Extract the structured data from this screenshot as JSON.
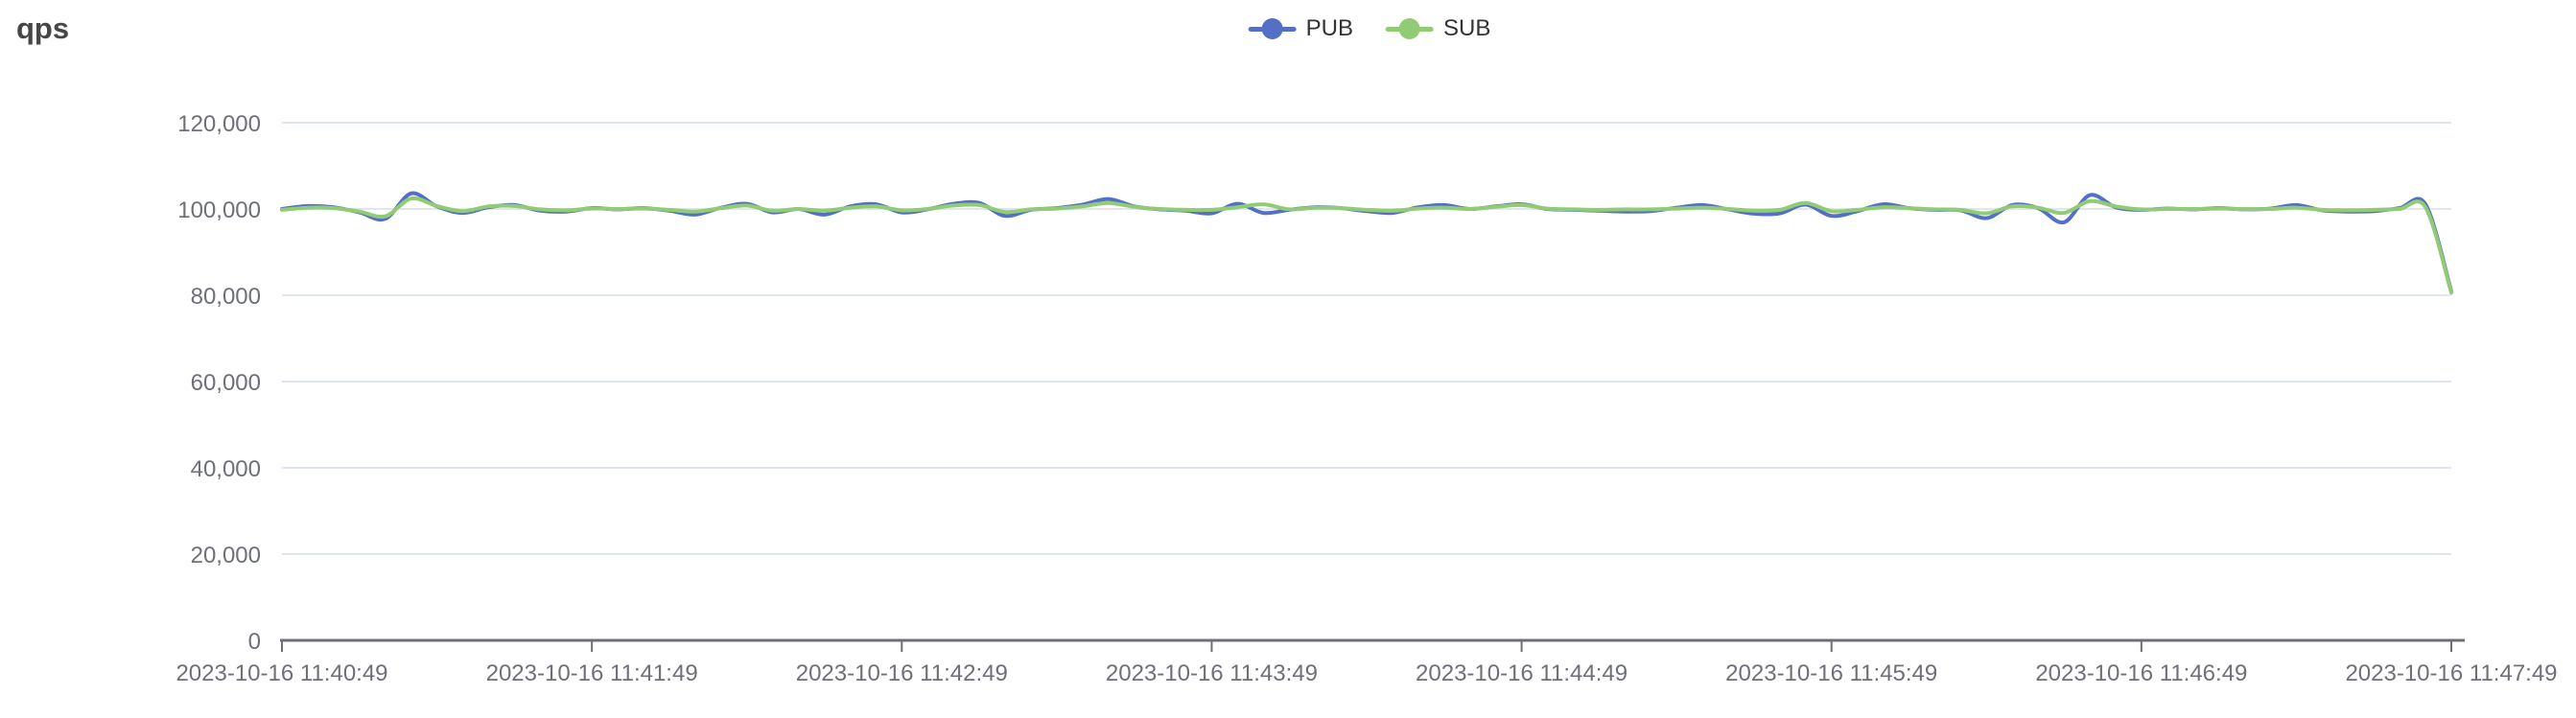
{
  "page": {
    "title": "qps"
  },
  "legend": {
    "items": [
      {
        "label": "PUB",
        "color": "#5470c6"
      },
      {
        "label": "SUB",
        "color": "#91cc75"
      }
    ]
  },
  "chart_data": {
    "type": "line",
    "smooth": true,
    "title": "qps",
    "grid": true,
    "legend_position": "top-center",
    "colors": {
      "grid_line": "#e0e6f1",
      "axis_line": "#6e7079",
      "axis_label": "#6e7079"
    },
    "y_axis": {
      "min": 0,
      "max": 120000,
      "interval": 20000,
      "tick_labels": [
        "0",
        "20,000",
        "40,000",
        "60,000",
        "80,000",
        "100,000",
        "120,000"
      ]
    },
    "x_axis": {
      "tick_seconds": [
        0,
        60,
        120,
        180,
        240,
        300,
        360,
        420
      ],
      "tick_labels": [
        "2023-10-16 11:40:49",
        "2023-10-16 11:41:49",
        "2023-10-16 11:42:49",
        "2023-10-16 11:43:49",
        "2023-10-16 11:44:49",
        "2023-10-16 11:45:49",
        "2023-10-16 11:46:49",
        "2023-10-16 11:47:49"
      ]
    },
    "x_seconds": [
      0,
      5,
      10,
      15,
      20,
      25,
      30,
      35,
      40,
      45,
      50,
      55,
      60,
      65,
      70,
      75,
      80,
      85,
      90,
      95,
      100,
      105,
      110,
      115,
      120,
      125,
      130,
      135,
      140,
      145,
      150,
      155,
      160,
      165,
      170,
      175,
      180,
      185,
      190,
      195,
      200,
      205,
      210,
      215,
      220,
      225,
      230,
      235,
      240,
      245,
      250,
      255,
      260,
      265,
      270,
      275,
      280,
      285,
      290,
      295,
      300,
      305,
      310,
      315,
      320,
      325,
      330,
      335,
      340,
      345,
      350,
      355,
      360,
      365,
      370,
      375,
      380,
      385,
      390,
      395,
      400,
      405,
      410,
      415,
      420
    ],
    "series": [
      {
        "name": "PUB",
        "color": "#5470c6",
        "values": [
          100000,
          100700,
          100400,
          99200,
          97700,
          103600,
          100600,
          99100,
          100400,
          100900,
          99600,
          99400,
          100200,
          99900,
          100200,
          99600,
          98700,
          100300,
          101200,
          99200,
          100000,
          98700,
          100600,
          101100,
          99200,
          99900,
          101200,
          101400,
          98400,
          99800,
          100200,
          101000,
          102300,
          100600,
          99900,
          99600,
          99000,
          101200,
          99100,
          99800,
          100400,
          100200,
          99500,
          99100,
          100400,
          100900,
          100000,
          100600,
          101100,
          100000,
          99800,
          99600,
          99400,
          99500,
          100300,
          100900,
          99900,
          98900,
          99000,
          101000,
          98400,
          99500,
          101100,
          100200,
          99800,
          99700,
          97900,
          100900,
          100200,
          96900,
          103200,
          100400,
          99800,
          100100,
          99900,
          100200,
          99900,
          100100,
          100900,
          99700,
          99400,
          99500,
          100200,
          101100,
          80900
        ]
      },
      {
        "name": "SUB",
        "color": "#91cc75",
        "values": [
          99800,
          100300,
          100200,
          99400,
          98300,
          102400,
          100700,
          99500,
          100600,
          100700,
          99900,
          99700,
          100100,
          100000,
          100100,
          99800,
          99400,
          100200,
          100800,
          99600,
          100000,
          99600,
          100300,
          100600,
          99700,
          100000,
          100800,
          100900,
          99300,
          99900,
          100100,
          100600,
          101400,
          100500,
          100000,
          99800,
          99800,
          100400,
          101100,
          99900,
          100300,
          100200,
          99800,
          99600,
          100100,
          100300,
          100000,
          100500,
          100900,
          100100,
          99900,
          99800,
          99900,
          99900,
          100100,
          100300,
          100000,
          99600,
          99800,
          101400,
          99500,
          99800,
          100400,
          100200,
          99900,
          99800,
          99000,
          100600,
          100300,
          99100,
          101800,
          100600,
          99900,
          100000,
          100000,
          100100,
          100000,
          100000,
          100300,
          99800,
          99700,
          99800,
          100000,
          100400,
          80600
        ]
      }
    ]
  }
}
